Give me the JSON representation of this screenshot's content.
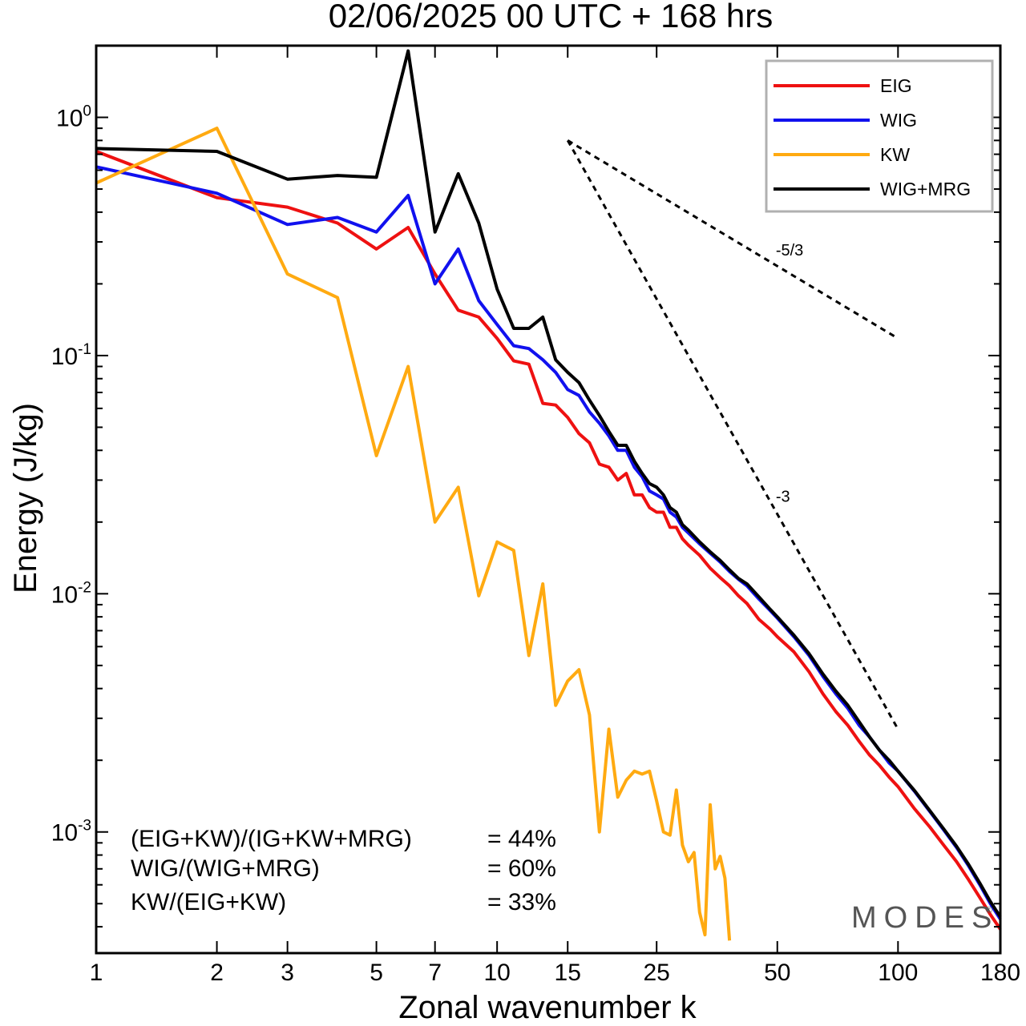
{
  "chart_data": {
    "type": "line",
    "title": "02/06/2025  00 UTC  + 168 hrs",
    "xlabel": "Zonal wavenumber k",
    "ylabel": "Energy (J/kg)",
    "xscale": "log",
    "yscale": "log",
    "xlim": [
      1,
      180
    ],
    "ylim": [
      0.00031,
      2.0
    ],
    "x_ticks": [
      1,
      2,
      3,
      5,
      7,
      10,
      15,
      25,
      50,
      100,
      180
    ],
    "x_tick_labels": [
      "1",
      "2",
      "3",
      "5",
      "7",
      "10",
      "15",
      "25",
      "50",
      "100",
      "180"
    ],
    "y_ticks": [
      {
        "value": 1,
        "base": "10",
        "exp": "0"
      },
      {
        "value": 0.1,
        "base": "10",
        "exp": "-1"
      },
      {
        "value": 0.01,
        "base": "10",
        "exp": "-2"
      },
      {
        "value": 0.001,
        "base": "10",
        "exp": "-3"
      }
    ],
    "grid": false,
    "legend_position": "top-right",
    "series": [
      {
        "name": "EIG",
        "color": "#ee1111",
        "points": [
          [
            1,
            0.72
          ],
          [
            2,
            0.46
          ],
          [
            3,
            0.42
          ],
          [
            4,
            0.36
          ],
          [
            5,
            0.28
          ],
          [
            6,
            0.345
          ],
          [
            7,
            0.22
          ],
          [
            8,
            0.155
          ],
          [
            9,
            0.145
          ],
          [
            10,
            0.118
          ],
          [
            11,
            0.095
          ],
          [
            12,
            0.092
          ],
          [
            13,
            0.063
          ],
          [
            14,
            0.062
          ],
          [
            15,
            0.055
          ],
          [
            16,
            0.047
          ],
          [
            17,
            0.043
          ],
          [
            18,
            0.035
          ],
          [
            19,
            0.034
          ],
          [
            20,
            0.03
          ],
          [
            21,
            0.032
          ],
          [
            22,
            0.026
          ],
          [
            23,
            0.026
          ],
          [
            24,
            0.023
          ],
          [
            25,
            0.022
          ],
          [
            26,
            0.022
          ],
          [
            27,
            0.019
          ],
          [
            28,
            0.019
          ],
          [
            29,
            0.017
          ],
          [
            30,
            0.016
          ],
          [
            32,
            0.0145
          ],
          [
            34,
            0.0128
          ],
          [
            36,
            0.0117
          ],
          [
            38,
            0.0108
          ],
          [
            40,
            0.0098
          ],
          [
            42,
            0.0091
          ],
          [
            45,
            0.0078
          ],
          [
            48,
            0.0071
          ],
          [
            50,
            0.0066
          ],
          [
            55,
            0.0057
          ],
          [
            60,
            0.0047
          ],
          [
            65,
            0.0038
          ],
          [
            70,
            0.0032
          ],
          [
            75,
            0.0028
          ],
          [
            80,
            0.0024
          ],
          [
            85,
            0.0021
          ],
          [
            90,
            0.0019
          ],
          [
            95,
            0.0017
          ],
          [
            100,
            0.00155
          ],
          [
            110,
            0.00125
          ],
          [
            120,
            0.00105
          ],
          [
            130,
            0.00088
          ],
          [
            140,
            0.00075
          ],
          [
            150,
            0.00063
          ],
          [
            160,
            0.00053
          ],
          [
            170,
            0.00045
          ],
          [
            180,
            0.00039
          ]
        ]
      },
      {
        "name": "WIG",
        "color": "#1111ee",
        "points": [
          [
            1,
            0.62
          ],
          [
            2,
            0.48
          ],
          [
            3,
            0.355
          ],
          [
            4,
            0.38
          ],
          [
            5,
            0.33
          ],
          [
            6,
            0.47
          ],
          [
            7,
            0.2
          ],
          [
            8,
            0.28
          ],
          [
            9,
            0.17
          ],
          [
            10,
            0.135
          ],
          [
            11,
            0.11
          ],
          [
            12,
            0.107
          ],
          [
            13,
            0.096
          ],
          [
            14,
            0.085
          ],
          [
            15,
            0.072
          ],
          [
            16,
            0.068
          ],
          [
            17,
            0.058
          ],
          [
            18,
            0.052
          ],
          [
            19,
            0.046
          ],
          [
            20,
            0.04
          ],
          [
            21,
            0.04
          ],
          [
            22,
            0.034
          ],
          [
            23,
            0.031
          ],
          [
            24,
            0.027
          ],
          [
            25,
            0.026
          ],
          [
            26,
            0.025
          ],
          [
            27,
            0.022
          ],
          [
            28,
            0.021
          ],
          [
            29,
            0.019
          ],
          [
            30,
            0.018
          ],
          [
            32,
            0.0162
          ],
          [
            34,
            0.0148
          ],
          [
            36,
            0.0136
          ],
          [
            38,
            0.0124
          ],
          [
            40,
            0.0115
          ],
          [
            42,
            0.0108
          ],
          [
            45,
            0.0095
          ],
          [
            48,
            0.0085
          ],
          [
            50,
            0.0079
          ],
          [
            55,
            0.0066
          ],
          [
            60,
            0.0055
          ],
          [
            65,
            0.0045
          ],
          [
            70,
            0.0038
          ],
          [
            75,
            0.0033
          ],
          [
            80,
            0.0028
          ],
          [
            85,
            0.0025
          ],
          [
            90,
            0.0022
          ],
          [
            95,
            0.00195
          ],
          [
            100,
            0.0018
          ],
          [
            110,
            0.00148
          ],
          [
            120,
            0.00122
          ],
          [
            130,
            0.00102
          ],
          [
            140,
            0.00086
          ],
          [
            150,
            0.00072
          ],
          [
            160,
            0.0006
          ],
          [
            170,
            0.0005
          ],
          [
            180,
            0.00043
          ]
        ]
      },
      {
        "name": "KW",
        "color": "#ffaa11",
        "points": [
          [
            1,
            0.53
          ],
          [
            2,
            0.9
          ],
          [
            3,
            0.22
          ],
          [
            4,
            0.175
          ],
          [
            5,
            0.038
          ],
          [
            6,
            0.09
          ],
          [
            7,
            0.02
          ],
          [
            8,
            0.028
          ],
          [
            9,
            0.0098
          ],
          [
            10,
            0.0165
          ],
          [
            11,
            0.0152
          ],
          [
            12,
            0.0055
          ],
          [
            13,
            0.011
          ],
          [
            14,
            0.0034
          ],
          [
            15,
            0.0043
          ],
          [
            16,
            0.0048
          ],
          [
            17,
            0.0031
          ],
          [
            18,
            0.001
          ],
          [
            19,
            0.0027
          ],
          [
            20,
            0.0014
          ],
          [
            21,
            0.00165
          ],
          [
            22,
            0.0018
          ],
          [
            23,
            0.00175
          ],
          [
            24,
            0.0018
          ],
          [
            25,
            0.00135
          ],
          [
            26,
            0.001
          ],
          [
            27,
            0.00097
          ],
          [
            28,
            0.0015
          ],
          [
            29,
            0.00088
          ],
          [
            30,
            0.00075
          ],
          [
            31,
            0.00082
          ],
          [
            32,
            0.00046
          ],
          [
            33,
            0.00037
          ],
          [
            34,
            0.0013
          ],
          [
            35,
            0.0007
          ],
          [
            36,
            0.00079
          ],
          [
            37,
            0.00064
          ],
          [
            38,
            0.00035
          ]
        ]
      },
      {
        "name": "WIG+MRG",
        "color": "#000000",
        "points": [
          [
            1,
            0.74
          ],
          [
            2,
            0.72
          ],
          [
            3,
            0.55
          ],
          [
            4,
            0.57
          ],
          [
            5,
            0.56
          ],
          [
            6,
            1.9
          ],
          [
            7,
            0.33
          ],
          [
            8,
            0.58
          ],
          [
            9,
            0.36
          ],
          [
            10,
            0.19
          ],
          [
            11,
            0.13
          ],
          [
            12,
            0.13
          ],
          [
            13,
            0.145
          ],
          [
            14,
            0.096
          ],
          [
            15,
            0.085
          ],
          [
            16,
            0.077
          ],
          [
            17,
            0.065
          ],
          [
            18,
            0.056
          ],
          [
            19,
            0.048
          ],
          [
            20,
            0.042
          ],
          [
            21,
            0.042
          ],
          [
            22,
            0.036
          ],
          [
            23,
            0.032
          ],
          [
            24,
            0.029
          ],
          [
            25,
            0.028
          ],
          [
            26,
            0.026
          ],
          [
            27,
            0.023
          ],
          [
            28,
            0.022
          ],
          [
            29,
            0.0195
          ],
          [
            30,
            0.0185
          ],
          [
            32,
            0.0165
          ],
          [
            34,
            0.015
          ],
          [
            36,
            0.0138
          ],
          [
            38,
            0.0126
          ],
          [
            40,
            0.0116
          ],
          [
            42,
            0.011
          ],
          [
            45,
            0.0097
          ],
          [
            48,
            0.0086
          ],
          [
            50,
            0.008
          ],
          [
            55,
            0.0067
          ],
          [
            60,
            0.0056
          ],
          [
            65,
            0.0046
          ],
          [
            70,
            0.0039
          ],
          [
            75,
            0.0034
          ],
          [
            80,
            0.0029
          ],
          [
            85,
            0.0025
          ],
          [
            90,
            0.0022
          ],
          [
            95,
            0.002
          ],
          [
            100,
            0.0018
          ],
          [
            110,
            0.00149
          ],
          [
            120,
            0.00123
          ],
          [
            130,
            0.00103
          ],
          [
            140,
            0.00087
          ],
          [
            150,
            0.00073
          ],
          [
            160,
            0.00061
          ],
          [
            170,
            0.00051
          ],
          [
            180,
            0.00044
          ]
        ]
      }
    ],
    "reference_lines": [
      {
        "label": "-5/3",
        "slope": "-5/3",
        "points": [
          [
            15,
            0.8
          ],
          [
            100,
            0.118
          ]
        ],
        "style": "dashed"
      },
      {
        "label": "-3",
        "slope": "-3",
        "points": [
          [
            15,
            0.8
          ],
          [
            100,
            0.0027
          ]
        ],
        "style": "dashed"
      }
    ],
    "stats": [
      {
        "label": "(EIG+KW)/(IG+KW+MRG)",
        "value": "= 44%"
      },
      {
        "label": "WIG/(WIG+MRG)",
        "value": "= 60%"
      },
      {
        "label": "KW/(EIG+KW)",
        "value": "= 33%"
      }
    ],
    "watermark": "MODES",
    "watermark_mark": "©"
  }
}
